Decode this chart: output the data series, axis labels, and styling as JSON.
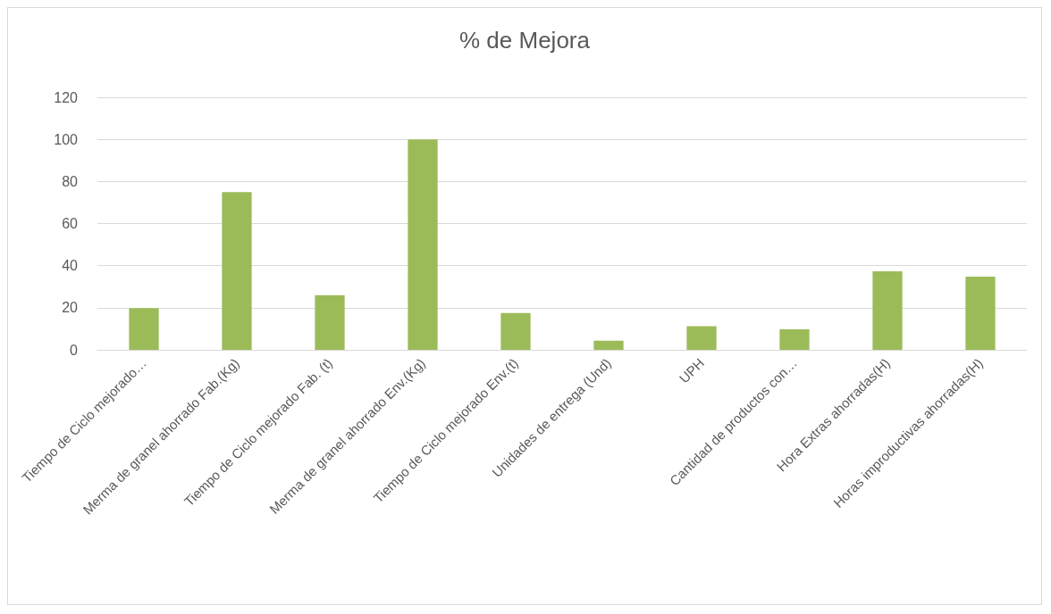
{
  "chart_data": {
    "type": "bar",
    "title": "% de Mejora",
    "categories": [
      "Tiempo de Ciclo mejorado…",
      "Merma de granel ahorrado Fab.(Kg)",
      "Tiempo de Ciclo mejorado Fab. (t)",
      "Merma de granel ahorrado Env.(Kg)",
      "Tiempo de Ciclo mejorado Env.(t)",
      "Unidades de entrega (Und)",
      "UPH",
      "Cantidad de productos con…",
      "Hora Extras ahorradas(H)",
      "Horas improductivas ahorradas(H)"
    ],
    "values": [
      19.8,
      75,
      26,
      100,
      17.5,
      4.3,
      11.2,
      9.7,
      37.3,
      34.8
    ],
    "color": "#9bbb59",
    "ylim": [
      0,
      120
    ],
    "yticks": [
      0,
      20,
      40,
      60,
      80,
      100,
      120
    ],
    "grid": "y"
  }
}
